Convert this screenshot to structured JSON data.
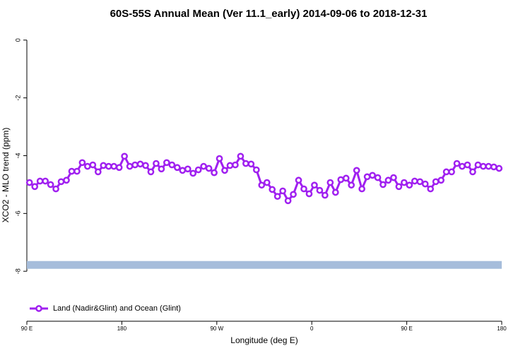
{
  "chart_data": {
    "type": "line",
    "title": "60S-55S Annual Mean (Ver 11.1_early)   2014-09-06 to 2018-12-31",
    "x_label": "Longitude (deg E)",
    "y_label": "XCO2 - MLO trend (ppm)",
    "x": [
      92.5,
      97.5,
      102.5,
      107.5,
      112.5,
      117.5,
      122.5,
      127.5,
      132.5,
      137.5,
      142.5,
      147.5,
      152.5,
      157.5,
      162.5,
      167.5,
      172.5,
      177.5,
      182.5,
      187.5,
      192.5,
      197.5,
      202.5,
      207.5,
      212.5,
      217.5,
      222.5,
      227.5,
      232.5,
      237.5,
      242.5,
      247.5,
      252.5,
      257.5,
      262.5,
      267.5,
      272.5,
      277.5,
      282.5,
      287.5,
      292.5,
      297.5,
      302.5,
      307.5,
      312.5,
      317.5,
      322.5,
      327.5,
      332.5,
      337.5,
      342.5,
      347.5,
      352.5,
      357.5,
      362.5,
      367.5,
      372.5,
      377.5,
      382.5,
      387.5,
      392.5,
      397.5,
      402.5,
      407.5,
      412.5,
      417.5,
      422.5,
      427.5,
      432.5,
      437.5,
      442.5,
      447.5,
      452.5,
      457.5,
      462.5,
      467.5,
      472.5,
      477.5,
      482.5,
      487.5,
      492.5,
      497.5,
      502.5,
      507.5,
      512.5,
      517.5,
      522.5,
      527.5,
      532.5,
      537.5
    ],
    "series": [
      {
        "name": "Land (Nadir&Glint) and Ocean (Glint)",
        "color": "#a020f0",
        "values": [
          -4.93,
          -5.07,
          -4.88,
          -4.88,
          -5.0,
          -5.15,
          -4.9,
          -4.85,
          -4.54,
          -4.54,
          -4.24,
          -4.37,
          -4.32,
          -4.56,
          -4.34,
          -4.37,
          -4.37,
          -4.41,
          -4.02,
          -4.37,
          -4.32,
          -4.29,
          -4.34,
          -4.56,
          -4.27,
          -4.46,
          -4.24,
          -4.32,
          -4.41,
          -4.51,
          -4.46,
          -4.61,
          -4.49,
          -4.37,
          -4.44,
          -4.59,
          -4.1,
          -4.51,
          -4.34,
          -4.32,
          -4.02,
          -4.27,
          -4.29,
          -4.49,
          -5.02,
          -4.93,
          -5.17,
          -5.41,
          -5.22,
          -5.56,
          -5.34,
          -4.85,
          -5.15,
          -5.32,
          -5.02,
          -5.2,
          -5.37,
          -4.93,
          -5.27,
          -4.83,
          -4.78,
          -5.02,
          -4.51,
          -5.15,
          -4.73,
          -4.68,
          -4.76,
          -5.0,
          -4.85,
          -4.76,
          -5.07,
          -4.93,
          -5.02,
          -4.88,
          -4.9,
          -4.98,
          -5.15,
          -4.9,
          -4.85,
          -4.56,
          -4.56,
          -4.27,
          -4.37,
          -4.32,
          -4.56,
          -4.32,
          -4.37,
          -4.37,
          -4.39,
          -4.44
        ]
      }
    ],
    "hline": {
      "value": -7.78,
      "color": "#a6bddb"
    },
    "xlim": [
      90,
      540
    ],
    "xticks": [
      {
        "value": 90,
        "label": "90 E"
      },
      180,
      {
        "value": 270,
        "label": "90 W"
      },
      {
        "value": 360,
        "label": "0"
      },
      {
        "value": 450,
        "label": "90 E"
      },
      {
        "value": 540,
        "label": "180"
      }
    ],
    "ylim": [
      -9.73,
      0.41
    ],
    "yticks": [
      0,
      -2,
      -4,
      -6,
      -8
    ],
    "legend": "bottom-left"
  }
}
